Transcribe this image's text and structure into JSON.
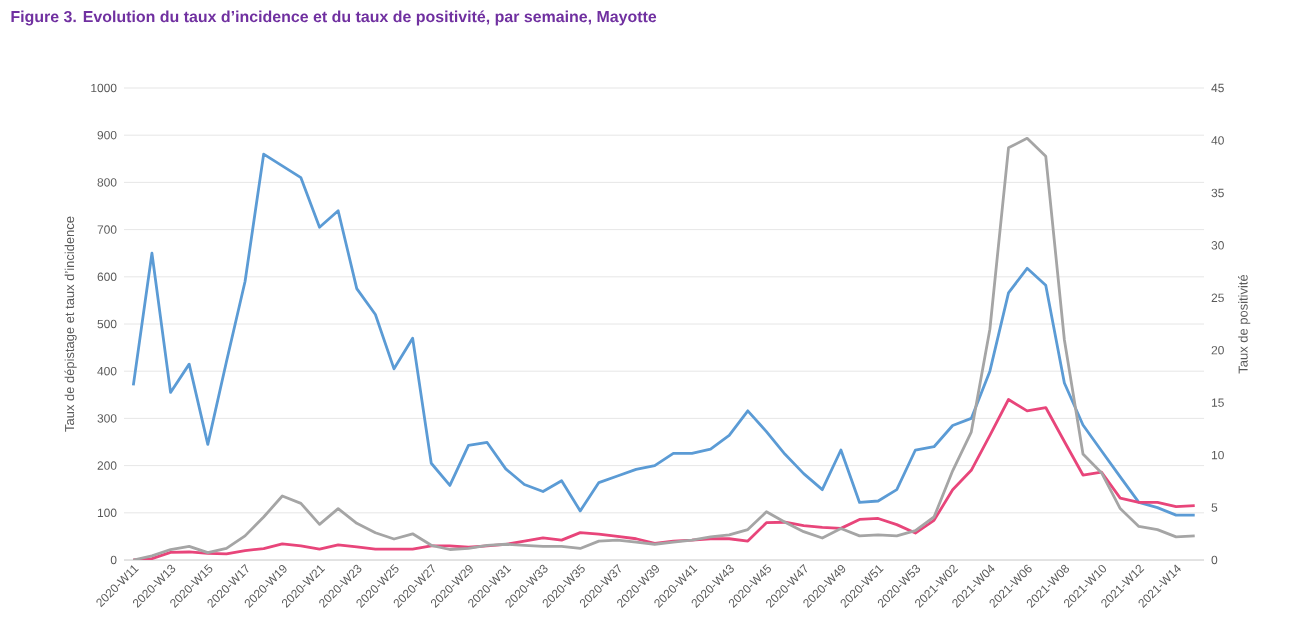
{
  "chart_data": {
    "type": "line",
    "title": "Figure 3. Evolution du taux d’incidence et du taux de positivité, par semaine, Mayotte",
    "ylabel": "Taux de dépistage et taux d’incidence",
    "y2label": "Taux de positivité",
    "categories": [
      "2020-W11",
      null,
      "2020-W13",
      null,
      "2020-W15",
      null,
      "2020-W17",
      null,
      "2020-W19",
      null,
      "2020-W21",
      null,
      "2020-W23",
      null,
      "2020-W25",
      null,
      "2020-W27",
      null,
      "2020-W29",
      null,
      "2020-W31",
      null,
      "2020-W33",
      null,
      "2020-W35",
      null,
      "2020-W37",
      null,
      "2020-W39",
      null,
      "2020-W41",
      null,
      "2020-W43",
      null,
      "2020-W45",
      null,
      "2020-W47",
      null,
      "2020-W49",
      null,
      "2020-W51",
      null,
      "2020-W53",
      null,
      "2021-W02",
      null,
      "2021-W04",
      null,
      "2021-W06",
      null,
      "2021-W08",
      null,
      "2021-W10",
      null,
      "2021-W12",
      null,
      "2021-W14",
      null
    ],
    "series": [
      {
        "color": "#5b9bd5",
        "values": [
          370,
          650,
          355,
          415,
          245,
          420,
          590,
          860,
          835,
          810,
          705,
          740,
          575,
          520,
          405,
          470,
          205,
          158,
          243,
          249,
          193,
          160,
          145,
          168,
          104,
          164,
          178,
          192,
          200,
          226,
          226,
          235,
          264,
          316,
          272,
          224,
          183,
          149,
          233,
          122,
          125,
          149,
          233,
          240,
          285,
          300,
          400,
          566,
          618,
          582,
          375,
          286,
          231,
          176,
          122,
          111,
          95,
          95
        ]
      },
      {
        "color": "#e8457a",
        "values": [
          0,
          3,
          16,
          17,
          14,
          13,
          20,
          24,
          34,
          30,
          23,
          32,
          28,
          23,
          23,
          23,
          30,
          30,
          27,
          30,
          33,
          40,
          47,
          42,
          58,
          55,
          50,
          45,
          35,
          40,
          42,
          45,
          45,
          40,
          79,
          80,
          73,
          69,
          67,
          86,
          88,
          75,
          57,
          84,
          149,
          190,
          264,
          340,
          316,
          323,
          251,
          180,
          186,
          131,
          122,
          122,
          113,
          115
        ]
      },
      {
        "color": "#a5a5a5",
        "axis": "y2",
        "values": [
          0,
          0.4,
          1.0,
          1.3,
          0.7,
          1.1,
          2.3,
          4.1,
          6.1,
          5.4,
          3.4,
          4.9,
          3.5,
          2.6,
          2.0,
          2.5,
          1.4,
          1.0,
          1.1,
          1.4,
          1.5,
          1.4,
          1.3,
          1.3,
          1.1,
          1.8,
          1.9,
          1.7,
          1.5,
          1.7,
          1.9,
          2.2,
          2.4,
          2.9,
          4.6,
          3.6,
          2.7,
          2.1,
          3.0,
          2.3,
          2.4,
          2.3,
          2.8,
          4.1,
          8.5,
          12.2,
          22,
          39.3,
          40.2,
          38.5,
          21,
          10.1,
          8.3,
          4.9,
          3.2,
          2.9,
          2.2,
          2.3
        ]
      }
    ],
    "ylim": [
      0,
      1000
    ],
    "yticks": [
      0,
      100,
      200,
      300,
      400,
      500,
      600,
      700,
      800,
      900,
      1000
    ],
    "y2lim": [
      0,
      45
    ],
    "y2ticks": [
      0,
      5,
      10,
      15,
      20,
      25,
      30,
      35,
      40,
      45
    ],
    "grid": "y"
  }
}
